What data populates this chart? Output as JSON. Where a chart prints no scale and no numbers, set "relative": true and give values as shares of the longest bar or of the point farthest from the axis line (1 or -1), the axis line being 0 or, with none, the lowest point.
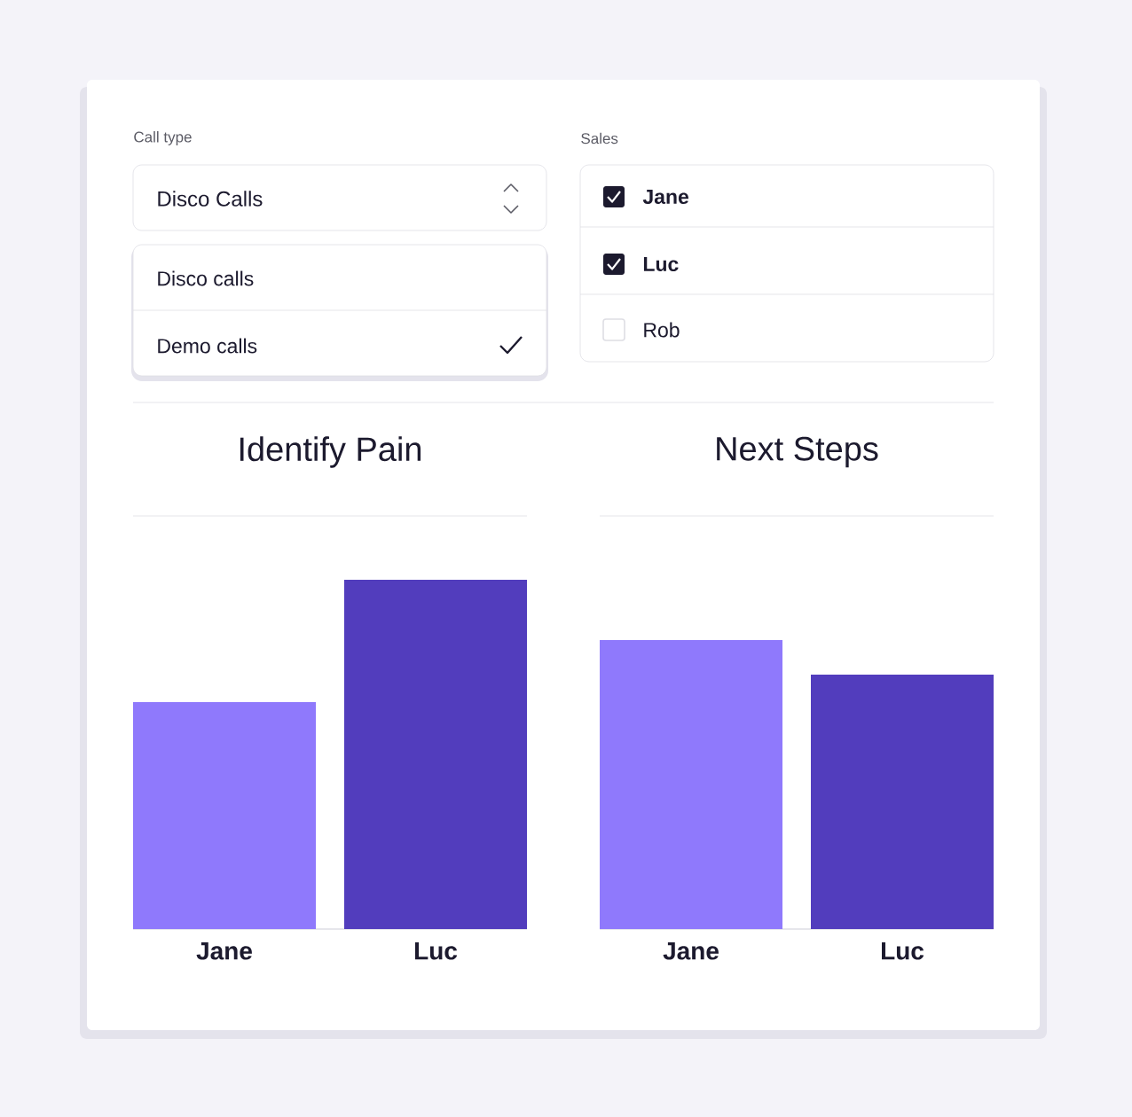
{
  "chart_data": [
    {
      "type": "other",
      "annotations": [
        "Call type",
        "Disco Calls",
        "Disco calls",
        "Demo calls",
        "Sales",
        "Jane",
        "Luc",
        "Rob"
      ]
    },
    {
      "type": "bar",
      "title": "Identify Pain",
      "categories": [
        "Jane",
        "Luc"
      ],
      "relative": true,
      "values": [
        0.65,
        1
      ],
      "colors": [
        "#8f79fc",
        "#523dbd"
      ]
    },
    {
      "type": "bar",
      "title": "Next Steps",
      "categories": [
        "Jane",
        "Luc"
      ],
      "relative": true,
      "values": [
        1,
        0.88
      ],
      "colors": [
        "#8f79fc",
        "#523dbd"
      ]
    }
  ]
}
